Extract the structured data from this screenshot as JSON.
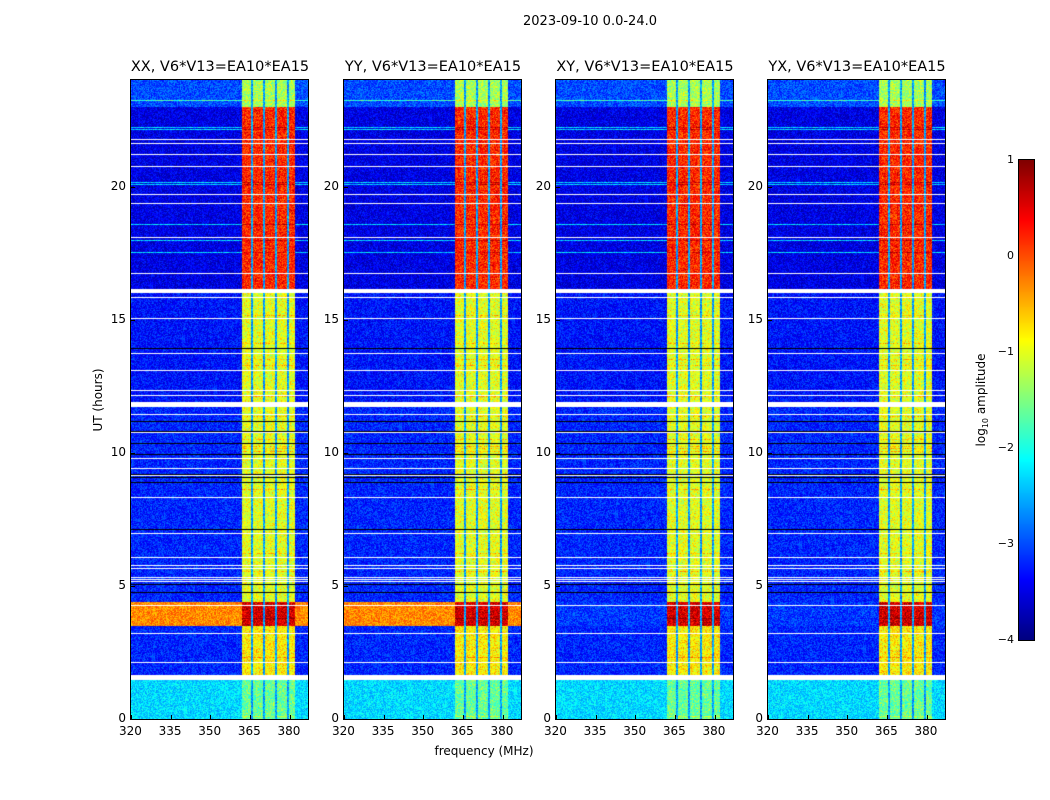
{
  "chart_data": {
    "type": "heatmap",
    "title": "2023-09-10 0.0-24.0",
    "xlabel": "frequency (MHz)",
    "ylabel": "UT (hours)",
    "colorbar_label_prefix": "log",
    "colorbar_label_sub": "10",
    "colorbar_label_suffix": " amplitude",
    "colormap": "jet",
    "clim": [
      -4,
      1
    ],
    "colorbar_ticks": [
      "1",
      "0",
      "−1",
      "−2",
      "−3",
      "−4"
    ],
    "colorbar_tick_values": [
      1,
      0,
      -1,
      -2,
      -3,
      -4
    ],
    "xlim": [
      320,
      387
    ],
    "ylim": [
      0,
      24
    ],
    "xticks": [
      320,
      335,
      350,
      365,
      380
    ],
    "yticks": [
      0,
      5,
      10,
      15,
      20
    ],
    "bright_band_mhz": [
      362,
      382
    ],
    "band_gaps_mhz": [
      365.8,
      370.2,
      374.8,
      379.3
    ],
    "panels": [
      {
        "title": "XX, V6*V13=EA10*EA15",
        "strong_base": true
      },
      {
        "title": "YY, V6*V13=EA10*EA15",
        "strong_base": true
      },
      {
        "title": "XY, V6*V13=EA10*EA15",
        "strong_base": false
      },
      {
        "title": "YX, V6*V13=EA10*EA15",
        "strong_base": false
      }
    ],
    "row_segments": [
      {
        "hours": [
          0,
          1.45
        ],
        "base": -2.3,
        "band": -1.6
      },
      {
        "hours": [
          1.45,
          1.6
        ],
        "flagged": true
      },
      {
        "hours": [
          1.6,
          3.5
        ],
        "base": -3.2,
        "band": -0.8
      },
      {
        "hours": [
          3.5,
          4.4
        ],
        "base": -3.1,
        "base_strong": -0.3,
        "band": 0.6
      },
      {
        "hours": [
          4.4,
          11.7
        ],
        "base": -3.2,
        "band": -1.0
      },
      {
        "hours": [
          11.7,
          11.9
        ],
        "flagged": true
      },
      {
        "hours": [
          11.9,
          16.0
        ],
        "base": -3.3,
        "band": -1.0
      },
      {
        "hours": [
          16.0,
          16.15
        ],
        "flagged": true
      },
      {
        "hours": [
          16.15,
          23.0
        ],
        "base": -3.5,
        "band": 0.2
      },
      {
        "hours": [
          23.0,
          24.0
        ],
        "base": -3.0,
        "band": -1.3
      }
    ]
  }
}
